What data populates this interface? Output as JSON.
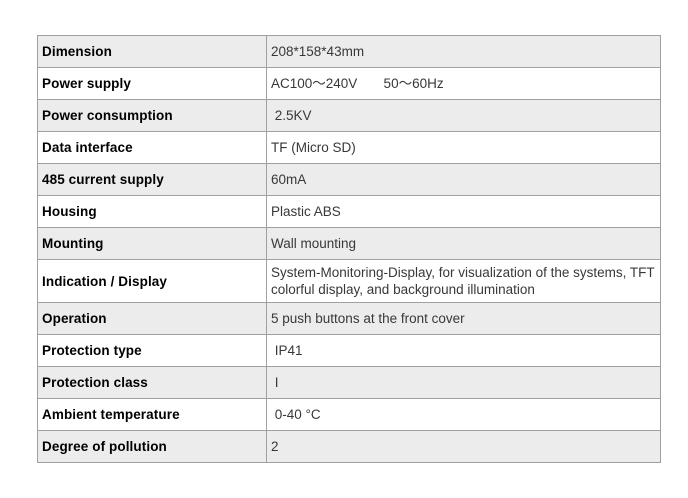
{
  "page": {
    "background_color": "#ffffff"
  },
  "spec_table": {
    "border_color": "#a0a0a0",
    "stripe_color": "#ececec",
    "label_text_color": "#000000",
    "value_text_color": "#383838",
    "rows": [
      {
        "label": "Dimension",
        "value": "208*158*43mm"
      },
      {
        "label": "Power supply",
        "value": "AC100～240V       50～60Hz"
      },
      {
        "label": "Power consumption",
        "value": " 2.5KV"
      },
      {
        "label": "Data interface",
        "value": "TF (Micro SD)"
      },
      {
        "label": "485 current supply",
        "value": "60mA"
      },
      {
        "label": "Housing",
        "value": "Plastic ABS"
      },
      {
        "label": "Mounting",
        "value": "Wall mounting"
      },
      {
        "label": "Indication / Display",
        "value": "System-Monitoring-Display, for visualization of the systems, TFT colorful display, and background illumination"
      },
      {
        "label": "Operation",
        "value": "5 push buttons at the front cover"
      },
      {
        "label": "Protection type",
        "value": " IP41"
      },
      {
        "label": "Protection class",
        "value": " I"
      },
      {
        "label": "Ambient temperature",
        "value": " 0-40 °C"
      },
      {
        "label": "Degree of pollution",
        "value": "2"
      }
    ]
  }
}
